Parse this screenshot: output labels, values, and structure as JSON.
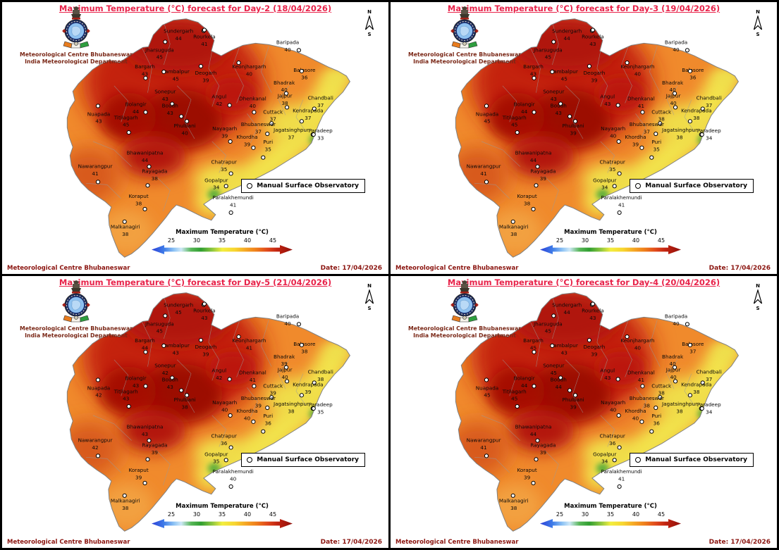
{
  "shared": {
    "org_line1": "Meteorological Centre Bhubaneswar",
    "org_line2": "India Meteorological Department",
    "compass_north": "N",
    "compass_south": "S",
    "legend_label": "Manual Surface Observatory",
    "colorbar_title": "Maximum Temperature (°C)",
    "colorbar_ticks": [
      "25",
      "30",
      "35",
      "40",
      "45"
    ],
    "footer_left": "Meteorological Centre Bhubaneswar",
    "footer_right": "Date: 17/04/2026",
    "colors": {
      "title_text": "#e8234a",
      "footer_text": "#8b1510",
      "org_text": "#7a2817",
      "map_base": "#f08a2c",
      "map_hot": "#9c0a05",
      "coast_yellow": "#f2e24c",
      "green_spot": "#5fae3a"
    }
  },
  "panels": [
    {
      "id": "day-2",
      "title": "Maximum Temperature (°C) forecast for Day-2 (18/04/2026)",
      "stations": [
        {
          "name": "Sundergarh",
          "value": 44
        },
        {
          "name": "Rourkela",
          "value": 41
        },
        {
          "name": "Jharsuguda",
          "value": 45
        },
        {
          "name": "Baripada",
          "value": 40
        },
        {
          "name": "Bargarh",
          "value": 43
        },
        {
          "name": "Sambalpur",
          "value": 45
        },
        {
          "name": "Deogarh",
          "value": 39
        },
        {
          "name": "Keonjhargarh",
          "value": 40
        },
        {
          "name": "Balasore",
          "value": 36
        },
        {
          "name": "Bhadrak",
          "value": 40
        },
        {
          "name": "Sonepur",
          "value": 43
        },
        {
          "name": "Bolangir",
          "value": 44
        },
        {
          "name": "Boudh",
          "value": 43
        },
        {
          "name": "Nuapada",
          "value": 43
        },
        {
          "name": "Titilagarh",
          "value": 45
        },
        {
          "name": "Phulbani",
          "value": 40
        },
        {
          "name": "Angul",
          "value": 42
        },
        {
          "name": "Dhenkanal",
          "value": 40
        },
        {
          "name": "Jajpur",
          "value": 38
        },
        {
          "name": "Chandbali",
          "value": 37
        },
        {
          "name": "Cuttack",
          "value": 37
        },
        {
          "name": "Kendrapada",
          "value": 37
        },
        {
          "name": "Nayagarh",
          "value": 39
        },
        {
          "name": "Bhubaneswar",
          "value": 37
        },
        {
          "name": "Jagatsinghpur",
          "value": 37
        },
        {
          "name": "Paradeep",
          "value": 33
        },
        {
          "name": "Khordha",
          "value": 39
        },
        {
          "name": "Puri",
          "value": 35
        },
        {
          "name": "Bhawanipatna",
          "value": 44
        },
        {
          "name": "Nawarangpur",
          "value": 41
        },
        {
          "name": "Rayagada",
          "value": 38
        },
        {
          "name": "Chatrapur",
          "value": 35
        },
        {
          "name": "Gopalpur",
          "value": 34
        },
        {
          "name": "Koraput",
          "value": 38
        },
        {
          "name": "Malkanagiri",
          "value": 38
        },
        {
          "name": "Paralakhemundi",
          "value": 41
        }
      ]
    },
    {
      "id": "day-3",
      "title": "Maximum Temperature (°C) forecast for Day-3 (19/04/2026)",
      "stations": [
        {
          "name": "Sundergarh",
          "value": 44
        },
        {
          "name": "Rourkela",
          "value": 43
        },
        {
          "name": "Jharsuguda",
          "value": 45
        },
        {
          "name": "Baripada",
          "value": 40
        },
        {
          "name": "Bargarh",
          "value": 43
        },
        {
          "name": "Sambalpur",
          "value": 45
        },
        {
          "name": "Deogarh",
          "value": 39
        },
        {
          "name": "Keonjhargarh",
          "value": 40
        },
        {
          "name": "Balasore",
          "value": 36
        },
        {
          "name": "Bhadrak",
          "value": 40
        },
        {
          "name": "Sonepur",
          "value": 43
        },
        {
          "name": "Bolangir",
          "value": 44
        },
        {
          "name": "Boudh",
          "value": 43
        },
        {
          "name": "Nuapada",
          "value": 45
        },
        {
          "name": "Titilagarh",
          "value": 45
        },
        {
          "name": "Phulbani",
          "value": 39
        },
        {
          "name": "Angul",
          "value": 43
        },
        {
          "name": "Dhenkanal",
          "value": 41
        },
        {
          "name": "Jajpur",
          "value": 40
        },
        {
          "name": "Chandbali",
          "value": 37
        },
        {
          "name": "Cuttack",
          "value": 38
        },
        {
          "name": "Kendrapada",
          "value": 38
        },
        {
          "name": "Nayagarh",
          "value": 40
        },
        {
          "name": "Bhubaneswar",
          "value": 37
        },
        {
          "name": "Jagatsinghpur",
          "value": 38
        },
        {
          "name": "Paradeep",
          "value": 34
        },
        {
          "name": "Khordha",
          "value": 39
        },
        {
          "name": "Puri",
          "value": 35
        },
        {
          "name": "Bhawanipatna",
          "value": 44
        },
        {
          "name": "Nawarangpur",
          "value": 41
        },
        {
          "name": "Rayagada",
          "value": 39
        },
        {
          "name": "Chatrapur",
          "value": 35
        },
        {
          "name": "Gopalpur",
          "value": 34
        },
        {
          "name": "Koraput",
          "value": 38
        },
        {
          "name": "Malkanagiri",
          "value": 38
        },
        {
          "name": "Paralakhemundi",
          "value": 41
        }
      ]
    },
    {
      "id": "day-5",
      "title": "Maximum Temperature (°C) forecast for Day-5 (21/04/2026)",
      "stations": [
        {
          "name": "Sundergarh",
          "value": 45
        },
        {
          "name": "Rourkela",
          "value": 43
        },
        {
          "name": "Jharsuguda",
          "value": 45
        },
        {
          "name": "Baripada",
          "value": 40
        },
        {
          "name": "Bargarh",
          "value": 44
        },
        {
          "name": "Sambalpur",
          "value": 43
        },
        {
          "name": "Deogarh",
          "value": 39
        },
        {
          "name": "Keonjhargarh",
          "value": 41
        },
        {
          "name": "Balasore",
          "value": 38
        },
        {
          "name": "Bhadrak",
          "value": 39
        },
        {
          "name": "Sonepur",
          "value": 42
        },
        {
          "name": "Bolangir",
          "value": 43
        },
        {
          "name": "Boudh",
          "value": 43
        },
        {
          "name": "Nuapada",
          "value": 42
        },
        {
          "name": "Titilagarh",
          "value": 43
        },
        {
          "name": "Phulbani",
          "value": 38
        },
        {
          "name": "Angul",
          "value": 42
        },
        {
          "name": "Dhenkanal",
          "value": 41
        },
        {
          "name": "Jajpur",
          "value": 40
        },
        {
          "name": "Chandbali",
          "value": 38
        },
        {
          "name": "Cuttack",
          "value": 39
        },
        {
          "name": "Kendrapada",
          "value": 39
        },
        {
          "name": "Nayagarh",
          "value": 40
        },
        {
          "name": "Bhubaneswar",
          "value": 39
        },
        {
          "name": "Jagatsinghpur",
          "value": 38
        },
        {
          "name": "Paradeep",
          "value": 35
        },
        {
          "name": "Khordha",
          "value": 40
        },
        {
          "name": "Puri",
          "value": 36
        },
        {
          "name": "Bhawanipatna",
          "value": 43
        },
        {
          "name": "Nawarangpur",
          "value": 42
        },
        {
          "name": "Rayagada",
          "value": 39
        },
        {
          "name": "Chatrapur",
          "value": 36
        },
        {
          "name": "Gopalpur",
          "value": 35
        },
        {
          "name": "Koraput",
          "value": 39
        },
        {
          "name": "Malkanagiri",
          "value": 38
        },
        {
          "name": "Paralakhemundi",
          "value": 40
        }
      ]
    },
    {
      "id": "day-4",
      "title": "Maximum Temperature (°C) forecast for Day-4 (20/04/2026)",
      "stations": [
        {
          "name": "Sundergarh",
          "value": 44
        },
        {
          "name": "Rourkela",
          "value": 43
        },
        {
          "name": "Jharsuguda",
          "value": 45
        },
        {
          "name": "Baripada",
          "value": 40
        },
        {
          "name": "Bargarh",
          "value": 45
        },
        {
          "name": "Sambalpur",
          "value": 43
        },
        {
          "name": "Deogarh",
          "value": 39
        },
        {
          "name": "Keonjhargarh",
          "value": 40
        },
        {
          "name": "Balasore",
          "value": 37
        },
        {
          "name": "Bhadrak",
          "value": 40
        },
        {
          "name": "Sonepur",
          "value": 45
        },
        {
          "name": "Bolangir",
          "value": 44
        },
        {
          "name": "Boudh",
          "value": 44
        },
        {
          "name": "Nuapada",
          "value": 45
        },
        {
          "name": "Titilagarh",
          "value": 45
        },
        {
          "name": "Phulbani",
          "value": 39
        },
        {
          "name": "Angul",
          "value": 43
        },
        {
          "name": "Dhenkanal",
          "value": 41
        },
        {
          "name": "Jajpur",
          "value": 40
        },
        {
          "name": "Chandbali",
          "value": 37
        },
        {
          "name": "Cuttack",
          "value": 38
        },
        {
          "name": "Kendrapada",
          "value": 38
        },
        {
          "name": "Nayagarh",
          "value": 40
        },
        {
          "name": "Bhubaneswar",
          "value": 38
        },
        {
          "name": "Jagatsinghpur",
          "value": 38
        },
        {
          "name": "Paradeep",
          "value": 34
        },
        {
          "name": "Khordha",
          "value": 40
        },
        {
          "name": "Puri",
          "value": 36
        },
        {
          "name": "Bhawanipatna",
          "value": 44
        },
        {
          "name": "Nawarangpur",
          "value": 41
        },
        {
          "name": "Rayagada",
          "value": 39
        },
        {
          "name": "Chatrapur",
          "value": 36
        },
        {
          "name": "Gopalpur",
          "value": 34
        },
        {
          "name": "Koraput",
          "value": 39
        },
        {
          "name": "Malkanagiri",
          "value": 38
        },
        {
          "name": "Paralakhemundi",
          "value": 41
        }
      ]
    }
  ]
}
